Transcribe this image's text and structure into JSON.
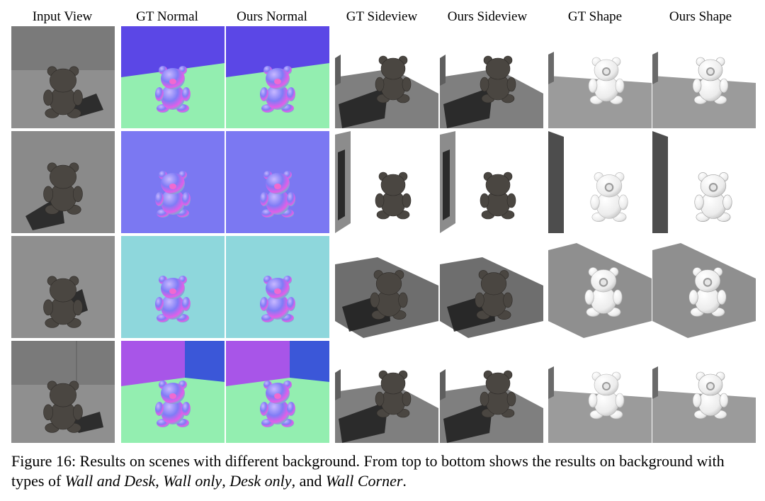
{
  "headers": [
    "Input View",
    "GT Normal",
    "Ours Normal",
    "GT Sideview",
    "Ours Sideview",
    "GT Shape",
    "Ours Shape"
  ],
  "rows": [
    {
      "background_type": "Wall and Desk"
    },
    {
      "background_type": "Wall only"
    },
    {
      "background_type": "Desk only"
    },
    {
      "background_type": "Wall Corner"
    }
  ],
  "caption": {
    "lead": "Figure 16: Results on scenes with different background. From top to bottom shows the results on background with types of ",
    "t1": "Wall and Desk",
    "sep1": ", ",
    "t2": "Wall only",
    "sep2": ", ",
    "t3": "Desk only",
    "sep3": ", and ",
    "t4": "Wall Corner",
    "end": "."
  },
  "colors": {
    "normal_wall_violet": "#5b47e6",
    "normal_floor_green": "#93eeb0",
    "normal_wall_only_blue": "#7b78f2",
    "normal_desk_only_teal": "#8ed7dc",
    "normal_corner_purple": "#a855e8",
    "normal_corner_blue": "#3b57d8",
    "render_bear": "#4a4641",
    "shape_bear": "#ececec"
  }
}
